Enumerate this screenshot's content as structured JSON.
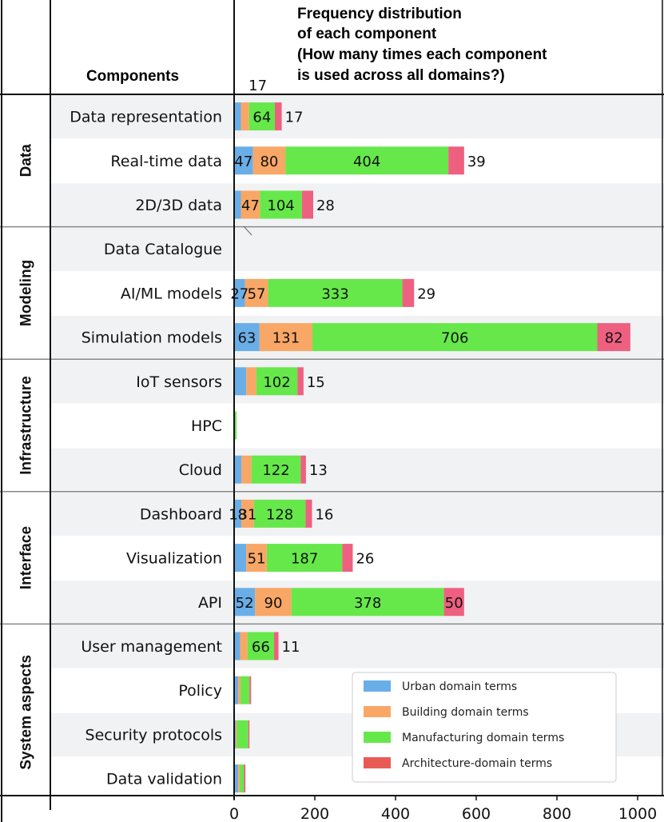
{
  "chart_data": {
    "type": "bar",
    "orientation": "horizontal",
    "stacked": true,
    "title": "Frequency distribution of each component (How many times each component is used across all domains?)",
    "title_lines": [
      "Frequency distribution",
      "of each component",
      "(How many times each component",
      "is used across all domains?)"
    ],
    "row_header": "Components",
    "xlim": [
      0,
      1000
    ],
    "xticks": [
      "0",
      "200",
      "400",
      "600",
      "800",
      "1000"
    ],
    "xtick_values": [
      0,
      200,
      400,
      600,
      800,
      1000
    ],
    "legend_position": "bottom-right",
    "series": [
      {
        "name": "Urban domain terms",
        "color": "#6aaee8"
      },
      {
        "name": "Building domain terms",
        "color": "#f9a766"
      },
      {
        "name": "Manufacturing domain terms",
        "color": "#66e84a"
      },
      {
        "name": "Architecture-domain terms",
        "color": "#ee6080"
      }
    ],
    "legend_swatch_colors": [
      "#6aaee8",
      "#f9a766",
      "#66e84a",
      "#ea5a55"
    ],
    "groups": [
      {
        "name": "Data",
        "components": [
          {
            "label": "Data representation",
            "values": [
              17,
              20,
              64,
              17
            ],
            "labels": [
              "",
              "",
              "64",
              "17"
            ],
            "top_label": "17"
          },
          {
            "label": "Real-time data",
            "values": [
              47,
              80,
              404,
              39
            ],
            "labels": [
              "47",
              "80",
              "404",
              "39"
            ]
          },
          {
            "label": "2D/3D data",
            "values": [
              17,
              47,
              104,
              28
            ],
            "labels": [
              "",
              "47",
              "104",
              "28"
            ]
          }
        ]
      },
      {
        "name": "Modeling",
        "components": [
          {
            "label": "Data Catalogue",
            "values": [
              0,
              0,
              0,
              0
            ],
            "labels": [
              "",
              "",
              "",
              ""
            ]
          },
          {
            "label": "AI/ML models",
            "values": [
              27,
              57,
              333,
              29
            ],
            "labels": [
              "27",
              "57",
              "333",
              "29"
            ]
          },
          {
            "label": "Simulation models",
            "values": [
              63,
              131,
              706,
              82
            ],
            "labels": [
              "63",
              "131",
              "706",
              "82"
            ]
          }
        ]
      },
      {
        "name": "Infrastructure",
        "components": [
          {
            "label": "IoT sensors",
            "values": [
              30,
              25,
              102,
              15
            ],
            "labels": [
              "",
              "",
              "102",
              "15"
            ]
          },
          {
            "label": "HPC",
            "values": [
              0,
              0,
              6,
              0
            ],
            "labels": [
              "",
              "",
              "",
              ""
            ]
          },
          {
            "label": "Cloud",
            "values": [
              18,
              25,
              122,
              13
            ],
            "labels": [
              "",
              "",
              "122",
              "13"
            ]
          }
        ]
      },
      {
        "name": "Interface",
        "components": [
          {
            "label": "Dashboard",
            "values": [
              18,
              31,
              128,
              16
            ],
            "labels": [
              "18",
              "31",
              "128",
              "16"
            ]
          },
          {
            "label": "Visualization",
            "values": [
              30,
              51,
              187,
              26
            ],
            "labels": [
              "",
              "51",
              "187",
              "26"
            ]
          },
          {
            "label": "API",
            "values": [
              52,
              90,
              378,
              50
            ],
            "labels": [
              "52",
              "90",
              "378",
              "50"
            ]
          }
        ]
      },
      {
        "name": "System aspects",
        "components": [
          {
            "label": "User management",
            "values": [
              15,
              18,
              66,
              11
            ],
            "labels": [
              "",
              "",
              "66",
              "11"
            ]
          },
          {
            "label": "Policy",
            "values": [
              10,
              6,
              22,
              4
            ],
            "labels": [
              "",
              "",
              "",
              ""
            ]
          },
          {
            "label": "Security protocols",
            "values": [
              4,
              3,
              28,
              3
            ],
            "labels": [
              "",
              "",
              "",
              ""
            ]
          },
          {
            "label": "Data validation",
            "values": [
              10,
              4,
              10,
              4
            ],
            "labels": [
              "",
              "",
              "",
              ""
            ]
          }
        ]
      }
    ]
  }
}
